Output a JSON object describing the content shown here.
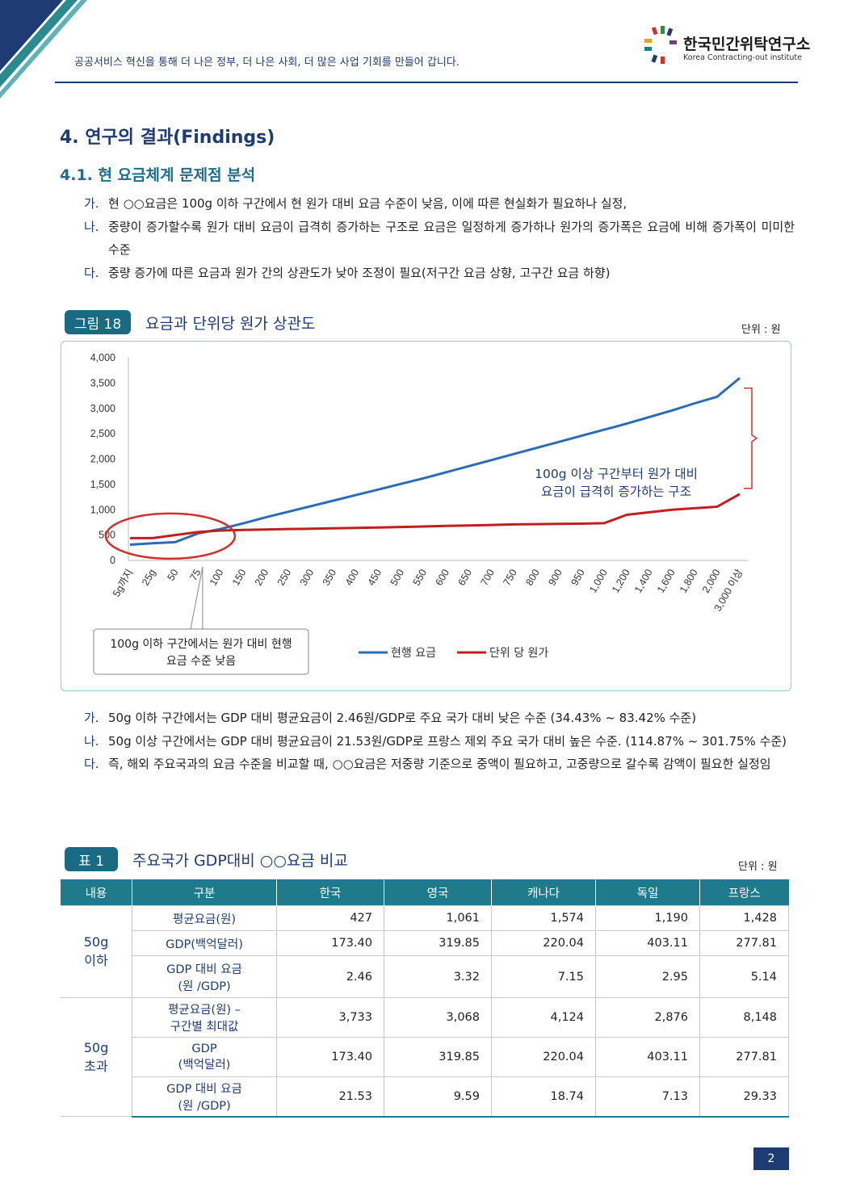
{
  "header": {
    "tagline": "공공서비스 혁신을 통해 더 나은 정부, 더 나은 사회, 더 많은 사업 기회를 만들어 갑니다.",
    "logo_ko": "한국민간위탁연구소",
    "logo_en": "Korea Contracting-out institute"
  },
  "section_title": "4. 연구의 결과(Findings)",
  "subsection_title": "4.1. 현 요금체계 문제점 분석",
  "para1": [
    {
      "marker": "가.",
      "text": "현 ○○요금은 100g 이하 구간에서 현 원가 대비 요금 수준이 낮음, 이에 따른 현실화가 필요하나 실정,"
    },
    {
      "marker": "나.",
      "text": "중량이 증가할수록 원가 대비 요금이 급격히 증가하는 구조로 요금은 일정하게 증가하나 원가의 증가폭은 요금에 비해 증가폭이 미미한 수준"
    },
    {
      "marker": "다.",
      "text": "중량 증가에 따른 요금과 원가 간의 상관도가 낮아 조정이 필요(저구간 요금 상향, 고구간 요금 하향)"
    }
  ],
  "figure": {
    "badge": "그림 18",
    "title": "요금과 단위당 원가 상관도",
    "unit": "단위 : 원"
  },
  "chart_data": {
    "type": "line",
    "categories": [
      "5g까지",
      "25g",
      "50",
      "75",
      "100",
      "150",
      "200",
      "250",
      "300",
      "350",
      "400",
      "450",
      "500",
      "550",
      "600",
      "650",
      "700",
      "750",
      "800",
      "900",
      "950",
      "1,000",
      "1,200",
      "1,400",
      "1,600",
      "1,800",
      "2,000",
      "3,000 이상"
    ],
    "series": [
      {
        "name": "현행 요금",
        "color": "#2a6db5",
        "values": [
          310,
          340,
          360,
          530,
          620,
          730,
          850,
          960,
          1070,
          1180,
          1290,
          1400,
          1510,
          1620,
          1740,
          1860,
          1980,
          2100,
          2220,
          2340,
          2460,
          2580,
          2700,
          2830,
          2960,
          3100,
          3230,
          3600
        ]
      },
      {
        "name": "단위 당 원가",
        "color": "#c01f1f",
        "values": [
          440,
          440,
          500,
          560,
          590,
          600,
          610,
          620,
          625,
          635,
          640,
          650,
          660,
          670,
          680,
          690,
          700,
          710,
          715,
          720,
          725,
          735,
          900,
          950,
          1000,
          1030,
          1060,
          1310
        ]
      }
    ],
    "ylim": [
      0,
      4000
    ],
    "yticks": [
      "4,000",
      "3,500",
      "3,000",
      "2,500",
      "2,000",
      "1,500",
      "1,000",
      "500",
      "0"
    ],
    "annotation_right": [
      "100g 이상 구간부터 원가 대비",
      "요금이 급격히 증가하는 구조"
    ],
    "annotation_box": [
      "100g 이하 구간에서는 원가 대비 현행",
      "요금 수준 낮음"
    ],
    "legend_position": "bottom"
  },
  "para2": [
    {
      "marker": "가.",
      "text": "50g 이하 구간에서는 GDP 대비 평균요금이 2.46원/GDP로 주요 국가 대비 낮은 수준 (34.43% ~ 83.42% 수준)"
    },
    {
      "marker": "나.",
      "text": "50g 이상 구간에서는 GDP 대비 평균요금이 21.53원/GDP로 프랑스 제외 주요 국가 대비 높은 수준. (114.87% ~ 301.75% 수준)"
    },
    {
      "marker": "다.",
      "text": "즉, 해외 주요국과의 요금 수준을 비교할 때, ○○요금은 저중량 기준으로 중액이 필요하고, 고중량으로 갈수록 감액이 필요한 실정임"
    }
  ],
  "table": {
    "badge": "표 1",
    "title": "주요국가 GDP대비 ○○요금 비교",
    "unit": "단위 : 원",
    "headers": [
      "내용",
      "구분",
      "한국",
      "영국",
      "캐나다",
      "독일",
      "프랑스"
    ],
    "groups": [
      {
        "label": [
          "50g",
          "이하"
        ],
        "rows": [
          {
            "cat": [
              "평균요금(원)"
            ],
            "vals": [
              "427",
              "1,061",
              "1,574",
              "1,190",
              "1,428"
            ]
          },
          {
            "cat": [
              "GDP(백억달러)"
            ],
            "vals": [
              "173.40",
              "319.85",
              "220.04",
              "403.11",
              "277.81"
            ]
          },
          {
            "cat": [
              "GDP 대비 요금",
              "(원 /GDP)"
            ],
            "vals": [
              "2.46",
              "3.32",
              "7.15",
              "2.95",
              "5.14"
            ]
          }
        ]
      },
      {
        "label": [
          "50g",
          "초과"
        ],
        "rows": [
          {
            "cat": [
              "평균요금(원) –",
              "구간별 최대값"
            ],
            "vals": [
              "3,733",
              "3,068",
              "4,124",
              "2,876",
              "8,148"
            ]
          },
          {
            "cat": [
              "GDP",
              "(백억달러)"
            ],
            "vals": [
              "173.40",
              "319.85",
              "220.04",
              "403.11",
              "277.81"
            ]
          },
          {
            "cat": [
              "GDP 대비 요금",
              "(원 /GDP)"
            ],
            "vals": [
              "21.53",
              "9.59",
              "18.74",
              "7.13",
              "29.33"
            ]
          }
        ]
      }
    ]
  },
  "page_number": "2"
}
